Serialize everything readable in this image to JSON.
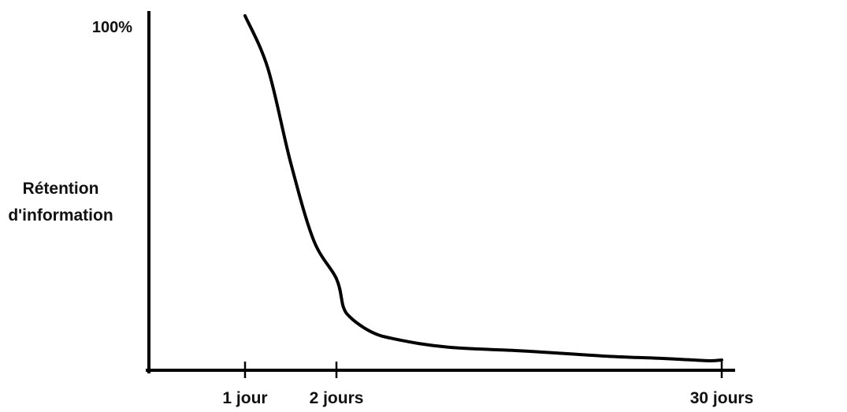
{
  "chart_data": {
    "type": "line",
    "title": "",
    "xlabel": "",
    "ylabel_lines": [
      "Rétention",
      "d'information"
    ],
    "y_ticks": [
      {
        "value": 100,
        "label": "100%"
      }
    ],
    "x_ticks": [
      {
        "value": 1,
        "label": "1 jour"
      },
      {
        "value": 2,
        "label": "2 jours"
      },
      {
        "value": 30,
        "label": "30 jours"
      }
    ],
    "ylim": [
      0,
      100
    ],
    "grid": false,
    "legend": "none",
    "colors": {
      "line": "#000000",
      "axis": "#000000",
      "text": "#111111"
    },
    "series": [
      {
        "x": [
          1,
          1.25,
          1.5,
          1.75,
          2,
          2.5,
          3,
          4,
          5,
          6,
          8,
          10,
          12,
          15,
          18,
          22,
          26,
          29,
          30
        ],
        "y": [
          100,
          85,
          58,
          36,
          25,
          17,
          14,
          11,
          9,
          8,
          6.5,
          5.5,
          5,
          4.5,
          3.8,
          2.8,
          2.2,
          1.6,
          1.8
        ]
      }
    ]
  }
}
